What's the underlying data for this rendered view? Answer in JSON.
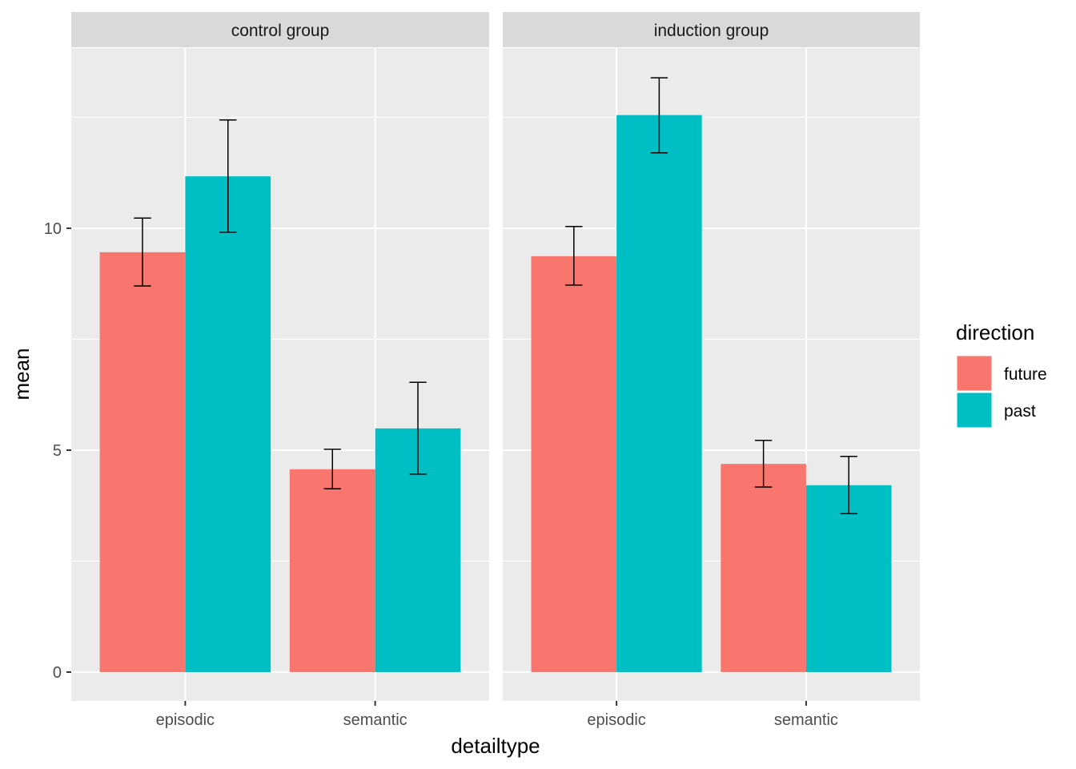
{
  "chart_data": {
    "type": "bar",
    "xlabel": "detailtype",
    "ylabel": "mean",
    "ylim": [
      -0.65,
      14.06
    ],
    "yticks": [
      0,
      5,
      10
    ],
    "grid": true,
    "legend": {
      "title": "direction",
      "position": "right",
      "entries": [
        "future",
        "past"
      ]
    },
    "colors": {
      "future": "#F8766D",
      "past": "#00BFC4"
    },
    "categories": [
      "episodic",
      "semantic"
    ],
    "facets": [
      {
        "label": "control group",
        "series": [
          {
            "name": "future",
            "values": [
              9.46,
              4.57
            ],
            "err_low": [
              8.7,
              4.13
            ],
            "err_high": [
              10.23,
              5.02
            ]
          },
          {
            "name": "past",
            "values": [
              11.17,
              5.49
            ],
            "err_low": [
              9.91,
              4.46
            ],
            "err_high": [
              12.44,
              6.53
            ]
          }
        ]
      },
      {
        "label": "induction group",
        "series": [
          {
            "name": "future",
            "values": [
              9.37,
              4.69
            ],
            "err_low": [
              8.72,
              4.17
            ],
            "err_high": [
              10.04,
              5.22
            ]
          },
          {
            "name": "past",
            "values": [
              12.55,
              4.21
            ],
            "err_low": [
              11.7,
              3.57
            ],
            "err_high": [
              13.39,
              4.86
            ]
          }
        ]
      }
    ]
  }
}
